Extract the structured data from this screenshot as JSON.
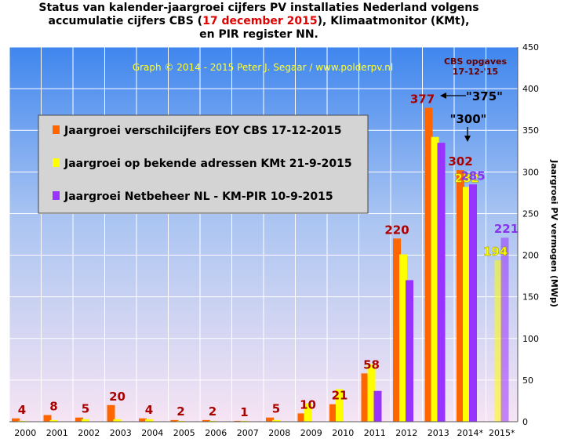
{
  "title": {
    "line1": "Status van kalender-jaargroei cijfers PV installaties Nederland volgens",
    "line2a": "accumulatie cijfers CBS (",
    "line2red": "17 december 2015",
    "line2b": "), Klimaatmonitor (KMt),",
    "line3": "en PIR register NN."
  },
  "colors": {
    "cbs": "#ff6600",
    "kmt": "#ffff00",
    "pir": "#9933ff",
    "label_cbs": "#aa0000",
    "label_kmt": "#ffff00",
    "label_pir": "#8833ee",
    "credit": "#ffff33"
  },
  "credit": "Graph © 2014 - 2015 Peter J. Segaar / www.polderpv.nl",
  "cbs_note_line1": "CBS opgaves",
  "cbs_note_line2": "17-12-'15",
  "annotation_375": "\"375\"",
  "annotation_300": "\"300\"",
  "chart_data": {
    "type": "bar",
    "ylabel": "Jaargroei PV vermogen (MWp)",
    "ylim": [
      0,
      450
    ],
    "yticks": [
      0,
      50,
      100,
      150,
      200,
      250,
      300,
      350,
      400,
      450
    ],
    "grid": true,
    "legend_position": "upper-left",
    "categories": [
      "2000",
      "2001",
      "2002",
      "2003",
      "2004",
      "2005",
      "2006",
      "2007",
      "2008",
      "2009",
      "2010",
      "2011",
      "2012",
      "2013",
      "2014*",
      "2015*"
    ],
    "series": [
      {
        "name": "Jaargroei verschilcijfers EOY CBS 17-12-2015",
        "key": "cbs",
        "values": [
          4,
          8,
          5,
          20,
          4,
          2,
          2,
          1,
          5,
          10,
          21,
          58,
          220,
          377,
          302,
          null
        ]
      },
      {
        "name": "Jaargroei op bekende adressen KMt 21-9-2015",
        "key": "kmt",
        "values": [
          1,
          2,
          3,
          3,
          3,
          1,
          1,
          1,
          2,
          22,
          39,
          69,
          201,
          342,
          282,
          194
        ]
      },
      {
        "name": "Jaargroei Netbeheer NL - KM-PIR 10-9-2015",
        "key": "pir",
        "values": [
          null,
          null,
          null,
          null,
          null,
          null,
          null,
          null,
          null,
          null,
          null,
          37,
          170,
          335,
          285,
          221
        ]
      }
    ],
    "value_labels": [
      {
        "series": "cbs",
        "index": 0,
        "text": "4"
      },
      {
        "series": "cbs",
        "index": 1,
        "text": "8"
      },
      {
        "series": "cbs",
        "index": 2,
        "text": "5"
      },
      {
        "series": "cbs",
        "index": 3,
        "text": "20"
      },
      {
        "series": "cbs",
        "index": 4,
        "text": "4"
      },
      {
        "series": "cbs",
        "index": 5,
        "text": "2"
      },
      {
        "series": "cbs",
        "index": 6,
        "text": "2"
      },
      {
        "series": "cbs",
        "index": 7,
        "text": "1"
      },
      {
        "series": "cbs",
        "index": 8,
        "text": "5"
      },
      {
        "series": "cbs",
        "index": 9,
        "text": "10"
      },
      {
        "series": "cbs",
        "index": 10,
        "text": "21"
      },
      {
        "series": "cbs",
        "index": 11,
        "text": "58"
      },
      {
        "series": "cbs",
        "index": 12,
        "text": "220"
      },
      {
        "series": "cbs",
        "index": 13,
        "text": "377"
      },
      {
        "series": "cbs",
        "index": 14,
        "text": "302"
      },
      {
        "series": "kmt",
        "index": 14,
        "text": "282"
      },
      {
        "series": "pir",
        "index": 14,
        "text": "285"
      },
      {
        "series": "kmt",
        "index": 15,
        "text": "194"
      },
      {
        "series": "pir",
        "index": 15,
        "text": "221"
      }
    ]
  }
}
